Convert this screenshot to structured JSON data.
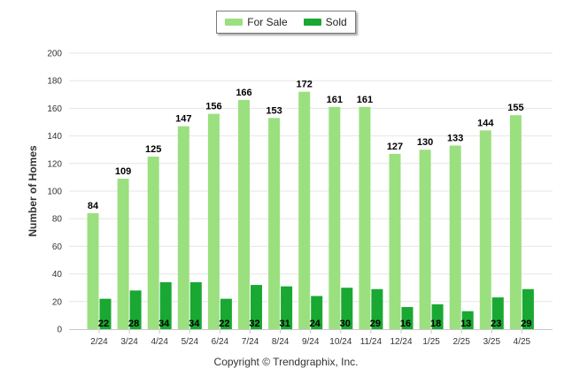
{
  "chart_data": {
    "type": "bar",
    "categories": [
      "2/24",
      "3/24",
      "4/24",
      "5/24",
      "6/24",
      "7/24",
      "8/24",
      "9/24",
      "10/24",
      "11/24",
      "12/24",
      "1/25",
      "2/25",
      "3/25",
      "4/25"
    ],
    "series": [
      {
        "name": "For Sale",
        "color": "#9be07f",
        "values": [
          84,
          109,
          125,
          147,
          156,
          166,
          153,
          172,
          161,
          161,
          127,
          130,
          133,
          144,
          155
        ]
      },
      {
        "name": "Sold",
        "color": "#19a832",
        "values": [
          22,
          28,
          34,
          34,
          22,
          32,
          31,
          24,
          30,
          29,
          16,
          18,
          13,
          23,
          29
        ]
      }
    ],
    "ylabel": "Number of Homes",
    "xlabel": "",
    "ylim": [
      0,
      200
    ],
    "yticks": [
      0,
      20,
      40,
      60,
      80,
      100,
      120,
      140,
      160,
      180,
      200
    ],
    "grid": true,
    "legend_position": "top-center"
  },
  "footer": {
    "copyright": "Copyright © Trendgraphix, Inc."
  }
}
